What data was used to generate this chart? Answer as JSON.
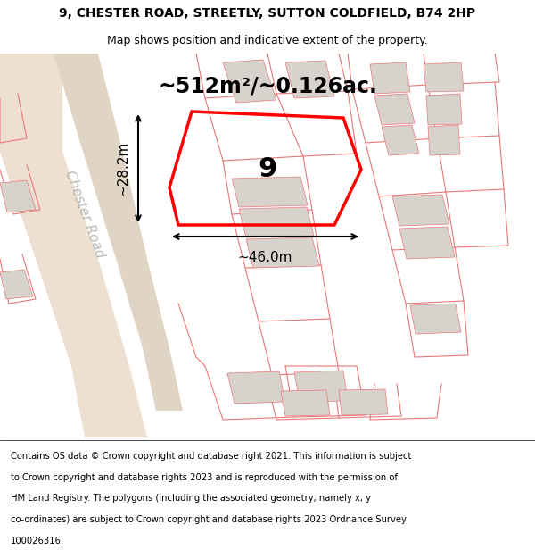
{
  "title_line1": "9, CHESTER ROAD, STREETLY, SUTTON COLDFIELD, B74 2HP",
  "title_line2": "Map shows position and indicative extent of the property.",
  "footer_lines": [
    "Contains OS data © Crown copyright and database right 2021. This information is subject",
    "to Crown copyright and database rights 2023 and is reproduced with the permission of",
    "HM Land Registry. The polygons (including the associated geometry, namely x, y",
    "co-ordinates) are subject to Crown copyright and database rights 2023 Ordnance Survey",
    "100026316."
  ],
  "area_text": "~512m²/~0.126ac.",
  "number_label": "9",
  "dim_width": "~46.0m",
  "dim_height": "~28.2m",
  "road_label": "Chester Road",
  "map_bg": "#f0ece6",
  "plot_line_color": "#e87878",
  "building_fill": "#d8d2cc",
  "highlight_color": "#ff0000",
  "fig_width": 6.0,
  "fig_height": 6.25
}
